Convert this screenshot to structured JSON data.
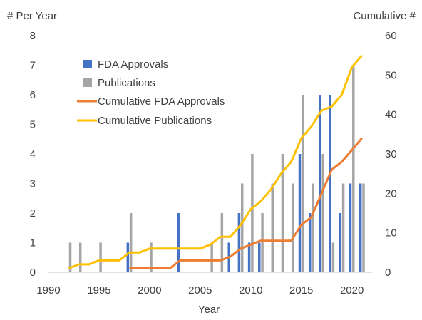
{
  "chart_data": {
    "type": "bar",
    "title": "",
    "xlabel": "Year",
    "ylabel_left": "# Per Year",
    "ylabel_right": "Cumulative #",
    "xlim": [
      1990,
      2022
    ],
    "ylim_left": [
      0,
      8
    ],
    "ylim_right": [
      0,
      60
    ],
    "x_ticks": [
      1990,
      1995,
      2000,
      2005,
      2010,
      2015,
      2020
    ],
    "y_left_ticks": [
      0,
      1,
      2,
      3,
      4,
      5,
      6,
      7,
      8
    ],
    "y_right_ticks": [
      0,
      10,
      20,
      30,
      40,
      50,
      60
    ],
    "grid": false,
    "legend_position": "top-left inside",
    "years": [
      1992,
      1993,
      1994,
      1995,
      1996,
      1997,
      1998,
      1999,
      2000,
      2001,
      2002,
      2003,
      2004,
      2005,
      2006,
      2007,
      2008,
      2009,
      2010,
      2011,
      2012,
      2013,
      2014,
      2015,
      2016,
      2017,
      2018,
      2019,
      2020,
      2021
    ],
    "series": [
      {
        "name": "FDA Approvals",
        "kind": "bar",
        "axis": "left",
        "color": "#4472C4",
        "values": [
          0,
          0,
          0,
          0,
          0,
          0,
          1,
          0,
          0,
          0,
          0,
          2,
          0,
          0,
          0,
          0,
          1,
          2,
          1,
          1,
          0,
          0,
          0,
          4,
          2,
          6,
          6,
          2,
          3,
          3
        ]
      },
      {
        "name": "Publications",
        "kind": "bar",
        "axis": "left",
        "color": "#A5A5A5",
        "values": [
          1,
          1,
          0,
          1,
          0,
          0,
          2,
          0,
          1,
          0,
          0,
          0,
          0,
          0,
          1,
          2,
          0,
          3,
          4,
          2,
          3,
          4,
          3,
          6,
          3,
          4,
          1,
          3,
          7,
          3
        ]
      },
      {
        "name": "Cumulative FDA Approvals",
        "kind": "line",
        "axis": "right",
        "color": "#ED7D31",
        "points": [
          [
            1998,
            1
          ],
          [
            1999,
            1
          ],
          [
            2000,
            1
          ],
          [
            2001,
            1
          ],
          [
            2002,
            1
          ],
          [
            2003,
            3
          ],
          [
            2004,
            3
          ],
          [
            2005,
            3
          ],
          [
            2006,
            3
          ],
          [
            2007,
            3
          ],
          [
            2008,
            4
          ],
          [
            2009,
            6
          ],
          [
            2010,
            7
          ],
          [
            2011,
            8
          ],
          [
            2012,
            8
          ],
          [
            2013,
            8
          ],
          [
            2014,
            8
          ],
          [
            2015,
            12
          ],
          [
            2016,
            14
          ],
          [
            2017,
            20
          ],
          [
            2018,
            26
          ],
          [
            2019,
            28
          ],
          [
            2020,
            31
          ],
          [
            2021,
            34
          ]
        ]
      },
      {
        "name": "Cumulative Publications",
        "kind": "line",
        "axis": "right",
        "color": "#FFC000",
        "points": [
          [
            1992,
            1
          ],
          [
            1993,
            2
          ],
          [
            1994,
            2
          ],
          [
            1995,
            3
          ],
          [
            1996,
            3
          ],
          [
            1997,
            3
          ],
          [
            1998,
            5
          ],
          [
            1999,
            5
          ],
          [
            2000,
            6
          ],
          [
            2001,
            6
          ],
          [
            2002,
            6
          ],
          [
            2003,
            6
          ],
          [
            2004,
            6
          ],
          [
            2005,
            6
          ],
          [
            2006,
            7
          ],
          [
            2007,
            9
          ],
          [
            2008,
            9
          ],
          [
            2009,
            12
          ],
          [
            2010,
            16
          ],
          [
            2011,
            18
          ],
          [
            2012,
            21
          ],
          [
            2013,
            25
          ],
          [
            2014,
            28
          ],
          [
            2015,
            34
          ],
          [
            2016,
            37
          ],
          [
            2017,
            41
          ],
          [
            2018,
            42
          ],
          [
            2019,
            45
          ],
          [
            2020,
            52
          ],
          [
            2021,
            55
          ]
        ]
      }
    ]
  }
}
